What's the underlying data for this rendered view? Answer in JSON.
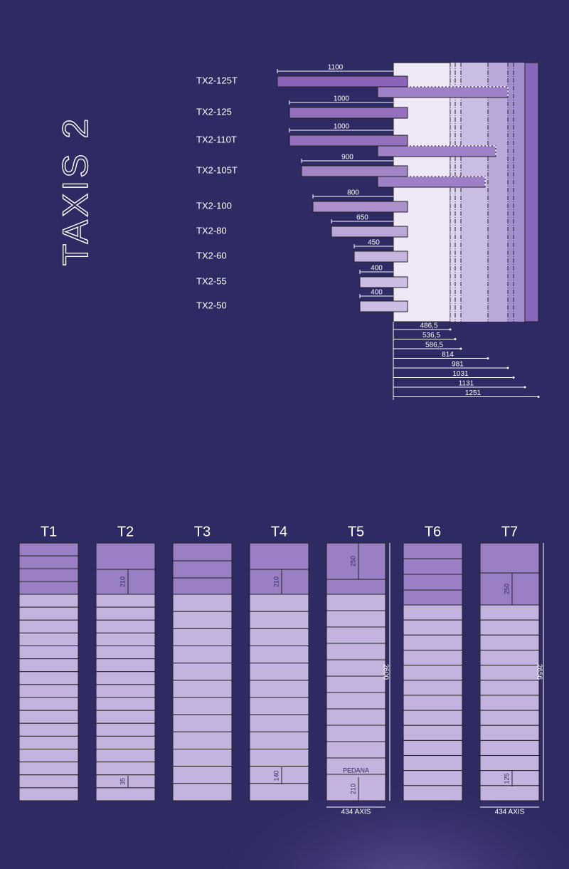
{
  "title": "TAXIS 2",
  "models": [
    {
      "label": "TX2-125T",
      "length": "1100"
    },
    {
      "label": "TX2-125",
      "length": "1000"
    },
    {
      "label": "TX2-110T",
      "length": "1000"
    },
    {
      "label": "TX2-105T",
      "length": "900"
    },
    {
      "label": "TX2-100",
      "length": "800"
    },
    {
      "label": "TX2-80",
      "length": "650"
    },
    {
      "label": "TX2-60",
      "length": "450"
    },
    {
      "label": "TX2-55",
      "length": "400"
    },
    {
      "label": "TX2-50",
      "length": "400"
    }
  ],
  "depths": [
    "486,5",
    "536,5",
    "586,5",
    "814",
    "981",
    "1031",
    "1131",
    "1251"
  ],
  "panels": [
    {
      "label": "T1"
    },
    {
      "label": "T2",
      "top_height": "210",
      "step": "35"
    },
    {
      "label": "T3"
    },
    {
      "label": "T4",
      "top_height": "210",
      "step": "140"
    },
    {
      "label": "T5",
      "top_height": "250",
      "height": "2600",
      "step_label": "PEDANA",
      "step": "210",
      "width": "434 AXIS"
    },
    {
      "label": "T6"
    },
    {
      "label": "T7",
      "top_height": "250",
      "height": "2656",
      "step": "125",
      "width": "434 AXIS"
    }
  ]
}
